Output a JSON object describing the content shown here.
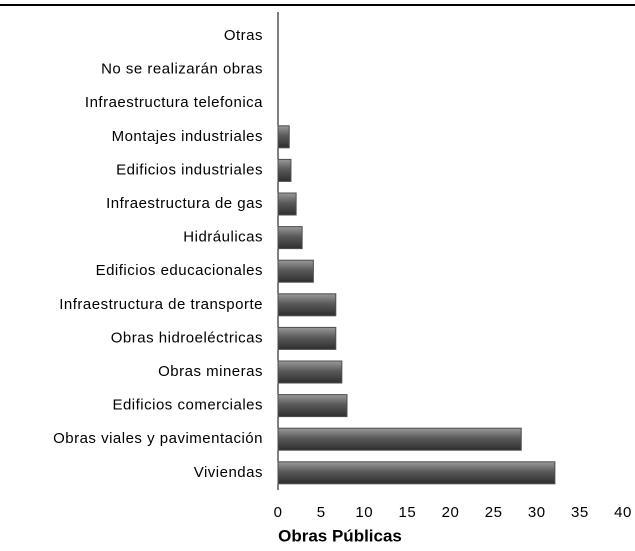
{
  "chart_data": {
    "type": "barh",
    "xlabel": "Obras Públicas",
    "categories": [
      "Otras",
      "No se realizarán obras",
      "Infraestructura telefonica",
      "Montajes industriales",
      "Edificios industriales",
      "Infraestructura de gas",
      "Hidráulicas",
      "Edificios educacionales",
      "Infraestructura de transporte",
      "Obras hidroeléctricas",
      "Obras mineras",
      "Edificios comerciales",
      "Obras viales y pavimentación",
      "Viviendas"
    ],
    "values": [
      0,
      0,
      0,
      1.3,
      1.5,
      2.1,
      2.8,
      4.1,
      6.7,
      6.7,
      7.4,
      8.0,
      28.2,
      32.1
    ],
    "color": "#4d4d4d",
    "xlim": [
      0,
      40
    ],
    "xticks": [
      0,
      5,
      10,
      15,
      20,
      25,
      30,
      35,
      40
    ]
  }
}
